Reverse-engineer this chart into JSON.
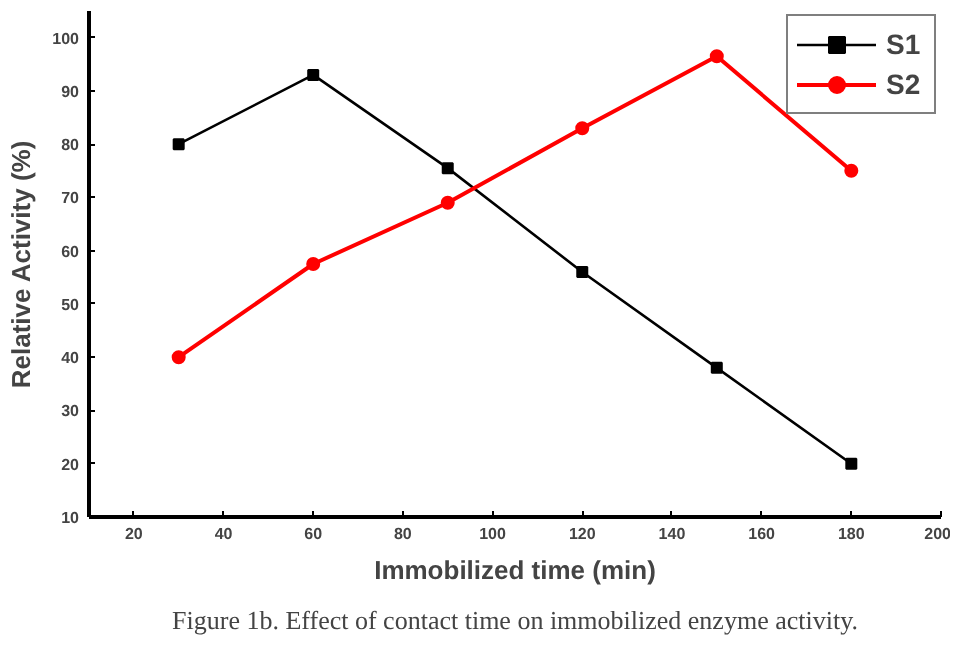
{
  "chart_data": {
    "type": "line",
    "xlabel": "Immobilized time (min)",
    "ylabel": "Relative Activity (%)",
    "x": [
      30,
      60,
      90,
      120,
      150,
      180
    ],
    "series": [
      {
        "name": "S1",
        "color": "#000000",
        "values": [
          80,
          93,
          75.5,
          56,
          38,
          20
        ],
        "marker": "square"
      },
      {
        "name": "S2",
        "color": "#ff0000",
        "values": [
          40,
          57.5,
          69,
          83,
          96.5,
          75
        ],
        "marker": "circle"
      }
    ],
    "xlim": [
      10,
      200
    ],
    "xticks": [
      20,
      40,
      60,
      80,
      100,
      120,
      140,
      160,
      180,
      200
    ],
    "ylim": [
      10,
      105
    ],
    "yticks": [
      10,
      20,
      30,
      40,
      50,
      60,
      70,
      80,
      90,
      100
    ],
    "grid": false,
    "legend": "top right",
    "line_style": "solid",
    "annotations": [
      "Figure 1b. Effect of contact time on immobilized enzyme activity."
    ]
  }
}
